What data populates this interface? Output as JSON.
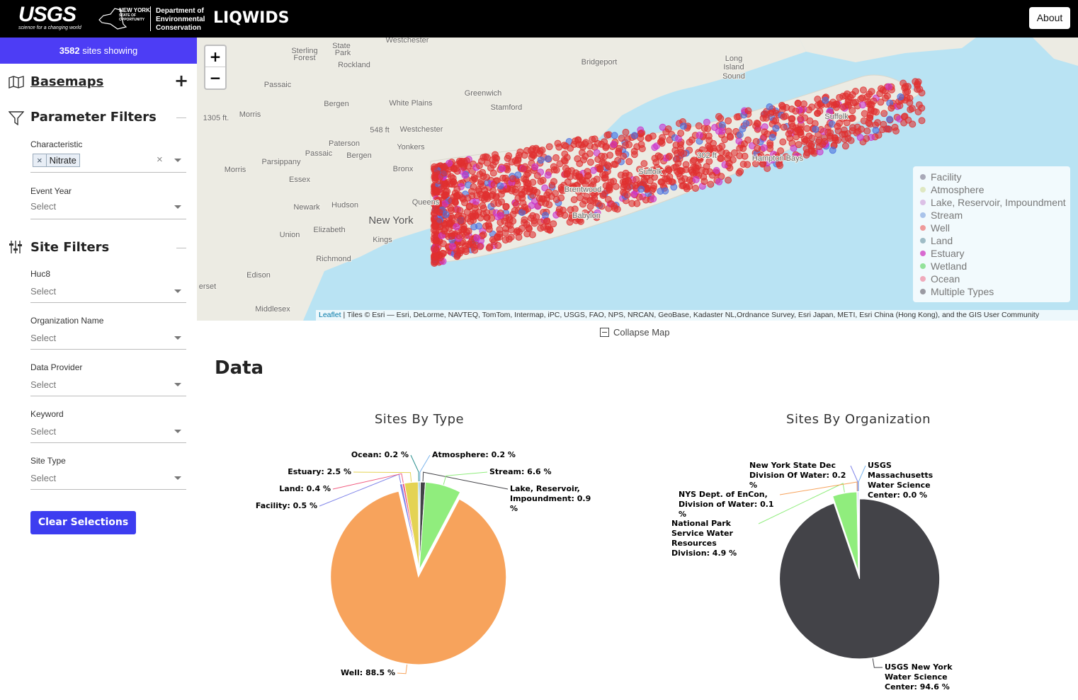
{
  "header": {
    "usgs_logo": "USGS",
    "usgs_tagline": "science for a changing world",
    "nys_logo": [
      "NEW YORK",
      "STATE OF",
      "OPPORTUNITY"
    ],
    "department": [
      "Department of",
      "Environmental",
      "Conservation"
    ],
    "app_title": "LIQWIDS",
    "about": "About"
  },
  "sidebar": {
    "sites_count": 3582,
    "sites_label": "sites showing",
    "basemaps": {
      "title": "Basemaps",
      "toggle": "+"
    },
    "parameter_filters": {
      "title": "Parameter Filters",
      "toggle": "—"
    },
    "characteristic": {
      "label": "Characteristic",
      "chip_remove": "×",
      "chip": "Nitrate",
      "clear": "×"
    },
    "event_year": {
      "label": "Event Year",
      "placeholder": "Select"
    },
    "site_filters": {
      "title": "Site Filters",
      "toggle": "—"
    },
    "filters": [
      {
        "label": "Huc8",
        "placeholder": "Select"
      },
      {
        "label": "Organization Name",
        "placeholder": "Select"
      },
      {
        "label": "Data Provider",
        "placeholder": "Select"
      },
      {
        "label": "Keyword",
        "placeholder": "Select"
      },
      {
        "label": "Site Type",
        "placeholder": "Select"
      }
    ],
    "clear_button": "Clear Selections"
  },
  "map": {
    "zoom_in": "+",
    "zoom_out": "−",
    "places": [
      "Sterling",
      "Forest",
      "State",
      "Park",
      "Westchester",
      "Rockland",
      "Bridgeport",
      "Long",
      "Island",
      "Sound",
      "Passaic",
      "Greenwich",
      "White Plains",
      "Stamford",
      "Bergen",
      "Morris",
      "1305 ft.",
      "548 ft",
      "Westchester",
      "Paterson",
      "Yonkers",
      "Passaic",
      "Bergen",
      "Parsippany",
      "Bronx",
      "Morris",
      "Essex",
      "Newark",
      "Hudson",
      "Queens",
      "New York",
      "Elizabeth",
      "Union",
      "Kings",
      "Richmond",
      "Edison",
      "Middlesex",
      "Hampton Bays",
      "Brentwood",
      "Babylon",
      "302 ft",
      "Suffolk",
      "Suffolk",
      "erset"
    ],
    "legend": [
      {
        "name": "Facility",
        "color": "#a9a9b8"
      },
      {
        "name": "Atmosphere",
        "color": "#dfe8c2"
      },
      {
        "name": "Lake, Reservoir, Impoundment",
        "color": "#dcc0e6"
      },
      {
        "name": "Stream",
        "color": "#a9c3ea"
      },
      {
        "name": "Well",
        "color": "#ef9a9a"
      },
      {
        "name": "Land",
        "color": "#9fbcc6"
      },
      {
        "name": "Estuary",
        "color": "#d86ad0"
      },
      {
        "name": "Wetland",
        "color": "#93e29a"
      },
      {
        "name": "Ocean",
        "color": "#f0aabb"
      },
      {
        "name": "Multiple Types",
        "color": "#9a9aa2"
      }
    ],
    "attribution_link": "Leaflet",
    "attribution": "| Tiles © Esri — Esri, DeLorme, NAVTEQ, TomTom, Intermap, iPC, USGS, FAO, NPS, NRCAN, GeoBase, Kadaster NL,Ordnance Survey, Esri Japan, METI, Esri China (Hong Kong), and the GIS User Community",
    "collapse": "Collapse Map"
  },
  "data_heading": "Data",
  "chart_data": [
    {
      "type": "pie",
      "title": "Sites By Type",
      "categories": [
        "Atmosphere",
        "Lake, Reservoir, Impoundment",
        "Stream",
        "Well",
        "Facility",
        "Land",
        "Estuary",
        "Ocean"
      ],
      "values": [
        0.2,
        0.9,
        6.6,
        88.5,
        0.5,
        0.4,
        2.5,
        0.2
      ],
      "value_labels": [
        ": 0.2 %",
        ": 0.9 %",
        ": 6.6 %",
        ": 88.5 %",
        ": 0.5 %",
        ": 0.4 %",
        ": 2.5 %",
        ": 0.2 %"
      ],
      "colors": [
        "#7cb5ec",
        "#434348",
        "#90ed7d",
        "#f7a35c",
        "#8085e9",
        "#f15c80",
        "#e4d354",
        "#2b908f"
      ]
    },
    {
      "type": "pie",
      "title": "Sites By Organization",
      "categories": [
        "USGS Massachusetts Water Science Center",
        "USGS New York Water Science Center",
        "National Park Service Water Resources Division",
        "NYS Dept. of EnCon, Division of Water",
        "New York State Dec Division Of Water"
      ],
      "values": [
        0.0,
        94.6,
        4.9,
        0.1,
        0.2
      ],
      "value_labels": [
        ": 0.0 %",
        ": 94.6 %",
        ": 4.9 %",
        ": 0.1 %",
        ": 0.2 %"
      ],
      "colors": [
        "#7cb5ec",
        "#434348",
        "#90ed7d",
        "#f7a35c",
        "#8085e9"
      ]
    }
  ]
}
